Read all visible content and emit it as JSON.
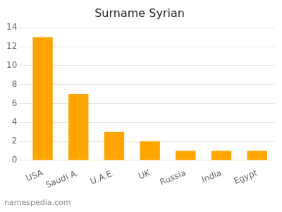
{
  "chart_data": {
    "type": "bar",
    "title": "Surname Syrian",
    "categories": [
      "USA",
      "Saudi A.",
      "U.A.E.",
      "UK",
      "Russia",
      "India",
      "Egypt"
    ],
    "values": [
      13,
      7,
      3,
      2,
      1,
      1,
      1
    ],
    "color": "#FFA500",
    "ylim": [
      0,
      14
    ],
    "yticks": [
      0,
      2,
      4,
      6,
      8,
      10,
      12,
      14
    ],
    "grid": true,
    "annotations": [
      "namespedia.com"
    ]
  }
}
